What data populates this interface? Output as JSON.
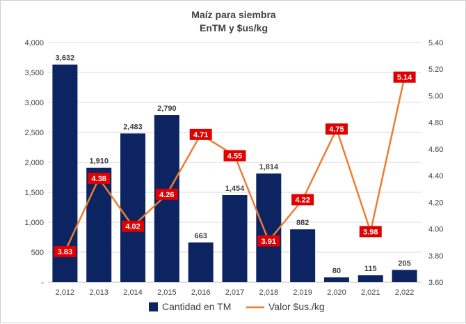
{
  "chart_data": {
    "type": "bar+line",
    "title_line1": "Maíz para siembra",
    "title_line2": "EnTM y $us/kg",
    "categories": [
      "2,012",
      "2,013",
      "2,014",
      "2,015",
      "2,016",
      "2,017",
      "2,018",
      "2,019",
      "2,020",
      "2,021",
      "2,022"
    ],
    "bar_series": {
      "name": "Cantidad en TM",
      "values": [
        3632,
        1910,
        2483,
        2790,
        663,
        1454,
        1814,
        882,
        80,
        115,
        205
      ],
      "labels": [
        "3,632",
        "1,910",
        "2,483",
        "2,790",
        "663",
        "1,454",
        "1,814",
        "882",
        "80",
        "115",
        "205"
      ],
      "color": "#0c2461"
    },
    "line_series": {
      "name": "Valor $us./kg",
      "values": [
        3.83,
        4.38,
        4.02,
        4.26,
        4.71,
        4.55,
        3.91,
        4.22,
        4.75,
        3.98,
        5.14
      ],
      "labels": [
        "3.83",
        "4.38",
        "4.02",
        "4.26",
        "4.71",
        "4.55",
        "3.91",
        "4.22",
        "4.75",
        "3.98",
        "5.14"
      ],
      "color": "#ed7d31",
      "label_bg": "#e00000"
    },
    "y_left": {
      "range": [
        0,
        4000
      ],
      "ticks": [
        0,
        500,
        1000,
        1500,
        2000,
        2500,
        3000,
        3500,
        4000
      ],
      "tick_labels": [
        "-",
        "500",
        "1,000",
        "1,500",
        "2,000",
        "2,500",
        "3,000",
        "3,500",
        "4,000"
      ]
    },
    "y_right": {
      "range": [
        3.6,
        5.4
      ],
      "ticks": [
        3.6,
        3.8,
        4.0,
        4.2,
        4.4,
        4.6,
        4.8,
        5.0,
        5.2,
        5.4
      ],
      "tick_labels": [
        "3.60",
        "3.80",
        "4.00",
        "4.20",
        "4.40",
        "4.60",
        "4.80",
        "5.00",
        "5.20",
        "5.40"
      ]
    },
    "legend": {
      "position": "bottom",
      "bar_label": "Cantidad en TM",
      "line_label": "Valor $us./kg"
    },
    "grid": true
  }
}
